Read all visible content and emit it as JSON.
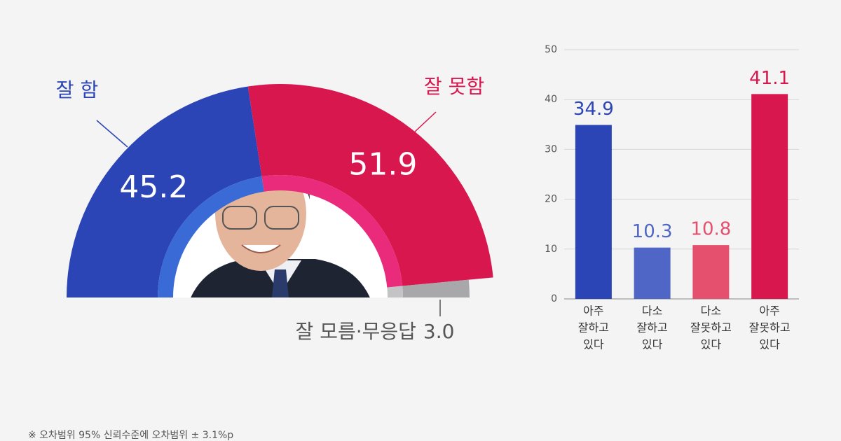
{
  "chart_data": [
    {
      "type": "half-donut",
      "categories": [
        "잘 함",
        "잘 못함",
        "잘 모름·무응답"
      ],
      "values": [
        45.2,
        51.9,
        3.0
      ],
      "value_labels": [
        "45.2",
        "51.9",
        "3.0"
      ],
      "colors": [
        "#2b44b6",
        "#d8174f",
        "#a8a8aa"
      ],
      "inner_colors": [
        "#3a6ad6",
        "#ea2a7a",
        "#c4c4c6"
      ]
    },
    {
      "type": "bar",
      "categories": [
        [
          "아주",
          "잘하고",
          "있다"
        ],
        [
          "다소",
          "잘하고",
          "있다"
        ],
        [
          "다소",
          "잘못하고",
          "있다"
        ],
        [
          "아주",
          "잘못하고",
          "있다"
        ]
      ],
      "values": [
        34.9,
        10.3,
        10.8,
        41.1
      ],
      "colors": [
        "#2b44b6",
        "#4f66c6",
        "#e6506f",
        "#d8174f"
      ],
      "ylim": [
        0,
        50
      ],
      "yticks": [
        0,
        10,
        20,
        30,
        40,
        50
      ],
      "grid": true
    }
  ],
  "footnote": "※ 오차범위 95% 신뢰수준에 오차범위 ± 3.1%p"
}
